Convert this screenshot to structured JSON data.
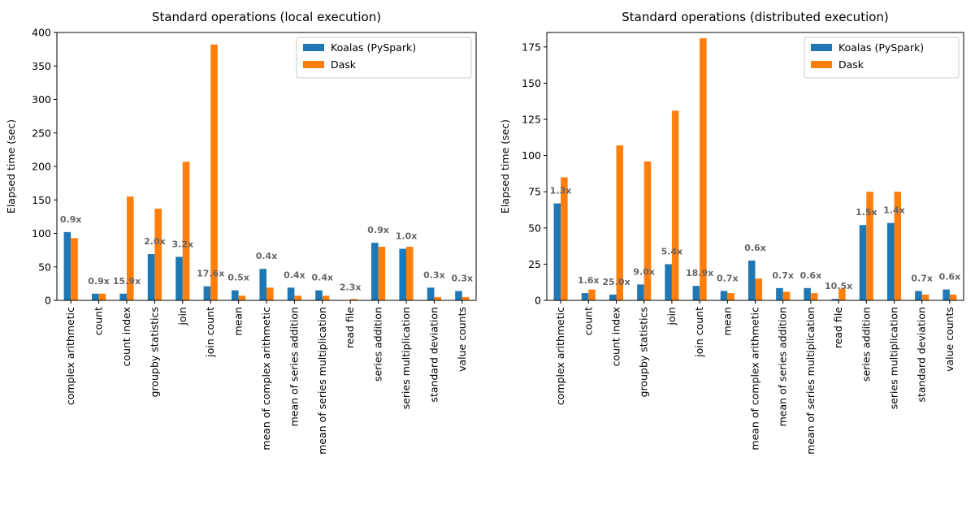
{
  "chart_data": [
    {
      "type": "bar",
      "title": "Standard operations (local execution)",
      "xlabel": "",
      "ylabel": "Elapsed time (sec)",
      "ylim": [
        0,
        400
      ],
      "yticks": [
        0,
        50,
        100,
        150,
        200,
        250,
        300,
        350,
        400
      ],
      "legend": "top-right",
      "categories": [
        "complex arithmetic",
        "count",
        "count index",
        "groupby statistics",
        "join",
        "join count",
        "mean",
        "mean of complex arithmetic",
        "mean of series addition",
        "mean of series multiplication",
        "read file",
        "series addition",
        "series multiplication",
        "standard deviation",
        "value counts"
      ],
      "series": [
        {
          "name": "Koalas (PySpark)",
          "color": "#1f77b4",
          "values": [
            102,
            10,
            10,
            69,
            65,
            21,
            15,
            47,
            19,
            15,
            0.5,
            86,
            77,
            19,
            14
          ]
        },
        {
          "name": "Dask",
          "color": "#ff7f0e",
          "values": [
            93,
            10,
            155,
            137,
            207,
            382,
            7,
            19,
            7,
            7,
            2,
            80,
            80,
            5,
            5
          ]
        }
      ],
      "annotations": [
        "0.9x",
        "0.9x",
        "15.9x",
        "2.0x",
        "3.2x",
        "17.6x",
        "0.5x",
        "0.4x",
        "0.4x",
        "0.4x",
        "2.3x",
        "0.9x",
        "1.0x",
        "0.3x",
        "0.3x"
      ]
    },
    {
      "type": "bar",
      "title": "Standard operations (distributed execution)",
      "xlabel": "",
      "ylabel": "Elapsed time (sec)",
      "ylim": [
        0,
        185
      ],
      "yticks": [
        0,
        25,
        50,
        75,
        100,
        125,
        150,
        175
      ],
      "legend": "top-right",
      "categories": [
        "complex arithmetic",
        "count",
        "count index",
        "groupby statistics",
        "join",
        "join count",
        "mean",
        "mean of complex arithmetic",
        "mean of series addition",
        "mean of series multiplication",
        "read file",
        "series addition",
        "series multiplication",
        "standard deviation",
        "value counts"
      ],
      "series": [
        {
          "name": "Koalas (PySpark)",
          "color": "#1f77b4",
          "values": [
            67,
            5,
            4,
            11,
            25,
            10,
            6.5,
            27.5,
            8.5,
            8.5,
            1,
            52,
            53.5,
            6.5,
            7.5
          ]
        },
        {
          "name": "Dask",
          "color": "#ff7f0e",
          "values": [
            85,
            7.5,
            107,
            96,
            131,
            181,
            5,
            15,
            6,
            5,
            8,
            75,
            75,
            4,
            4
          ]
        }
      ],
      "annotations": [
        "1.3x",
        "1.6x",
        "25.0x",
        "9.0x",
        "5.4x",
        "18.9x",
        "0.7x",
        "0.6x",
        "0.7x",
        "0.6x",
        "10.5x",
        "1.5x",
        "1.4x",
        "0.7x",
        "0.6x"
      ]
    }
  ]
}
